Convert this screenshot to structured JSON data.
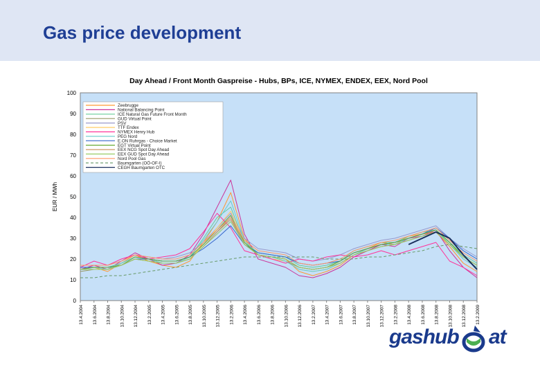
{
  "slide": {
    "title": "Gas price development"
  },
  "logo": {
    "left_text": "gashub",
    "right_text": "at",
    "colors": {
      "text": "#1a3a8c",
      "accent": "#4caf50"
    }
  },
  "chart_data": {
    "type": "line",
    "title": "Day Ahead / Front Month Gaspreise - Hubs, BPs, ICE, NYMEX, ENDEX, EEX, Nord Pool",
    "xlabel": "",
    "ylabel": "EUR / MWh",
    "ylim": [
      0,
      100
    ],
    "yticks": [
      0,
      10,
      20,
      30,
      40,
      50,
      60,
      70,
      80,
      90,
      100
    ],
    "grid": false,
    "plot_background": "#c6e0f8",
    "legend_position": "top-left",
    "xtick_labels": [
      "13.4.2004",
      "13.6.2004",
      "13.8.2004",
      "13.10.2004",
      "13.12.2004",
      "13.2.2005",
      "13.4.2005",
      "13.6.2005",
      "13.8.2005",
      "13.10.2005",
      "13.12.2005",
      "13.2.2006",
      "13.4.2006",
      "13.6.2006",
      "13.8.2006",
      "13.10.2006",
      "13.12.2006",
      "13.2.2007",
      "13.4.2007",
      "13.6.2007",
      "13.8.2007",
      "13.10.2007",
      "13.12.2007",
      "13.2.2008",
      "13.4.2008",
      "13.6.2008",
      "13.8.2008",
      "13.10.2008",
      "13.12.2008",
      "13.2.2009"
    ],
    "series": [
      {
        "name": "Zeebrugge",
        "color": "#ff9933",
        "dash": "",
        "values": [
          15,
          16,
          14,
          18,
          22,
          19,
          17,
          16,
          19,
          28,
          38,
          52,
          30,
          22,
          21,
          20,
          14,
          12,
          14,
          17,
          22,
          25,
          28,
          27,
          31,
          32,
          33,
          26,
          18,
          14
        ]
      },
      {
        "name": "National Balancing Point",
        "color": "#cc3399",
        "dash": "",
        "values": [
          15,
          17,
          15,
          19,
          23,
          20,
          17,
          18,
          22,
          32,
          45,
          58,
          32,
          20,
          18,
          16,
          12,
          11,
          13,
          16,
          21,
          24,
          27,
          26,
          30,
          31,
          34,
          24,
          16,
          11
        ]
      },
      {
        "name": "ICE Natural Gas Future Front Month",
        "color": "#66cc99",
        "dash": "",
        "values": [
          16,
          16,
          16,
          18,
          21,
          20,
          19,
          19,
          21,
          30,
          40,
          45,
          28,
          23,
          22,
          21,
          17,
          16,
          17,
          19,
          24,
          26,
          28,
          28,
          31,
          33,
          34,
          28,
          22,
          18
        ]
      },
      {
        "name": "GUD Virtual Point",
        "color": "#999966",
        "dash": "",
        "values": [
          14,
          15,
          15,
          17,
          20,
          19,
          18,
          18,
          20,
          26,
          33,
          40,
          27,
          22,
          20,
          19,
          16,
          15,
          16,
          18,
          22,
          24,
          26,
          27,
          29,
          31,
          33,
          27,
          21,
          17
        ]
      },
      {
        "name": "PSV",
        "color": "#9999cc",
        "dash": "",
        "values": [
          17,
          17,
          17,
          19,
          22,
          21,
          20,
          21,
          23,
          28,
          35,
          42,
          30,
          25,
          24,
          23,
          20,
          19,
          20,
          22,
          25,
          27,
          29,
          30,
          32,
          34,
          36,
          30,
          25,
          21
        ]
      },
      {
        "name": "TTF Endex",
        "color": "#ffcc66",
        "dash": "",
        "values": [
          15,
          16,
          15,
          18,
          21,
          20,
          18,
          18,
          20,
          27,
          35,
          43,
          28,
          22,
          20,
          19,
          15,
          14,
          15,
          18,
          22,
          25,
          27,
          27,
          30,
          32,
          34,
          27,
          20,
          16
        ]
      },
      {
        "name": "NYMEX Henry Hub",
        "color": "#ff3399",
        "dash": "",
        "values": [
          16,
          19,
          17,
          20,
          22,
          20,
          21,
          22,
          25,
          33,
          42,
          35,
          24,
          22,
          20,
          18,
          20,
          19,
          21,
          22,
          21,
          22,
          24,
          22,
          24,
          26,
          28,
          19,
          16,
          12
        ]
      },
      {
        "name": "PEG Nord",
        "color": "#66cccc",
        "dash": "",
        "values": [
          15,
          16,
          15,
          18,
          21,
          20,
          18,
          18,
          21,
          29,
          38,
          48,
          29,
          22,
          21,
          19,
          15,
          14,
          15,
          18,
          22,
          25,
          27,
          27,
          30,
          32,
          34,
          27,
          20,
          16
        ]
      },
      {
        "name": "E.ON Ruhrgas - Choice Market",
        "color": "#3366cc",
        "dash": "",
        "values": [
          16,
          16,
          16,
          17,
          20,
          20,
          19,
          19,
          21,
          25,
          30,
          36,
          27,
          23,
          22,
          21,
          18,
          17,
          18,
          19,
          23,
          25,
          27,
          28,
          30,
          32,
          35,
          30,
          24,
          20
        ]
      },
      {
        "name": "EGT Virtual Point",
        "color": "#66aa33",
        "dash": "",
        "values": [
          15,
          16,
          16,
          17,
          21,
          20,
          19,
          19,
          21,
          27,
          34,
          41,
          28,
          22,
          21,
          20,
          16,
          15,
          16,
          19,
          23,
          25,
          27,
          28,
          30,
          32,
          34,
          28,
          21,
          17
        ]
      },
      {
        "name": "EEX NCG Spot Day Ahead",
        "color": "#cc9966",
        "dash": "",
        "values": [
          15,
          15,
          15,
          17,
          20,
          19,
          18,
          18,
          20,
          26,
          33,
          39,
          27,
          22,
          21,
          20,
          16,
          15,
          16,
          18,
          22,
          24,
          26,
          27,
          29,
          31,
          33,
          27,
          21,
          17
        ]
      },
      {
        "name": "EEX GUD Spot Day Ahead",
        "color": "#99cc66",
        "dash": "",
        "values": [
          15,
          15,
          15,
          17,
          20,
          19,
          18,
          18,
          20,
          26,
          32,
          38,
          27,
          22,
          21,
          20,
          16,
          15,
          16,
          18,
          22,
          24,
          26,
          27,
          29,
          31,
          33,
          27,
          21,
          17
        ]
      },
      {
        "name": "Nord Pool Gas",
        "color": "#ff9966",
        "dash": "",
        "values": [
          17,
          17,
          17,
          19,
          22,
          21,
          20,
          20,
          22,
          28,
          34,
          40,
          29,
          24,
          23,
          22,
          18,
          17,
          18,
          20,
          24,
          26,
          28,
          29,
          31,
          33,
          35,
          29,
          23,
          19
        ]
      },
      {
        "name": "Baumgarten (OÖ-OF-I)",
        "color": "#669966",
        "dash": "4,3",
        "values": [
          11,
          11,
          12,
          12,
          13,
          14,
          15,
          16,
          17,
          18,
          19,
          20,
          21,
          21,
          21,
          21,
          21,
          21,
          20,
          20,
          20,
          21,
          21,
          22,
          23,
          24,
          26,
          27,
          26,
          25
        ]
      },
      {
        "name": "CEGH Baumgarten OTC",
        "color": "#1a2f5c",
        "dash": "",
        "values": [
          null,
          null,
          null,
          null,
          null,
          null,
          null,
          null,
          null,
          null,
          null,
          null,
          null,
          null,
          null,
          null,
          null,
          null,
          null,
          null,
          null,
          null,
          null,
          null,
          27,
          30,
          33,
          30,
          22,
          15
        ]
      }
    ]
  }
}
